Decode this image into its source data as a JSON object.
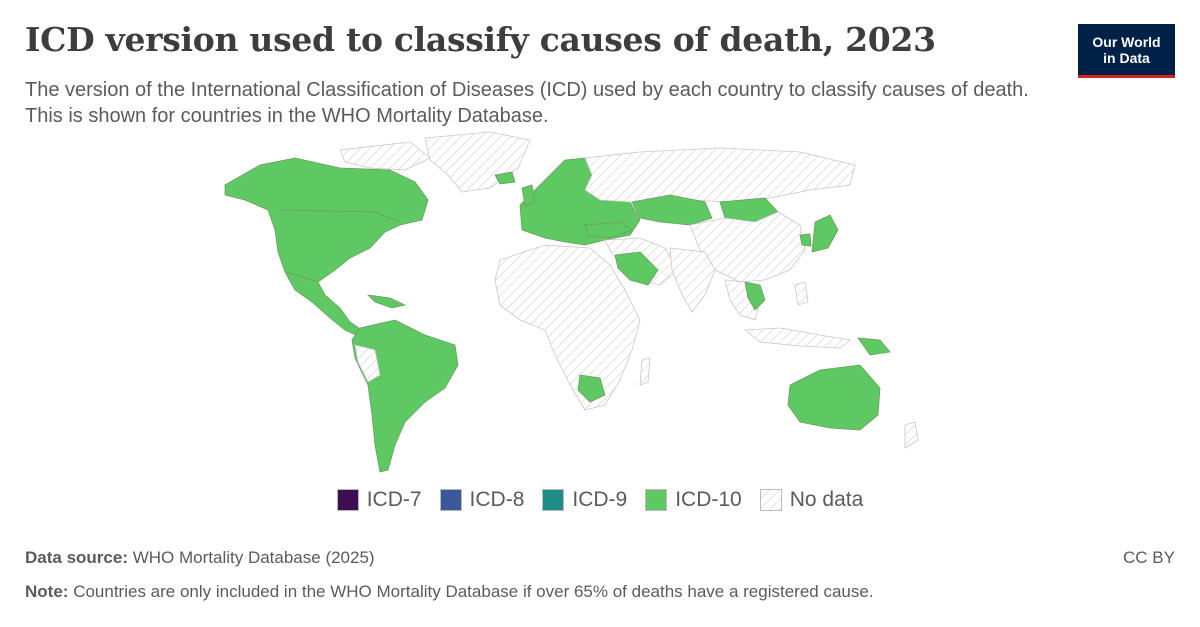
{
  "header": {
    "title": "ICD version used to classify causes of death, 2023",
    "subtitle": "The version of the International Classification of Diseases (ICD) used by each country to classify causes of death. This is shown for countries in the WHO Mortality Database."
  },
  "logo": {
    "line1": "Our World",
    "line2": "in Data"
  },
  "legend": [
    {
      "label": "ICD-7",
      "color": "#3f0d52"
    },
    {
      "label": "ICD-8",
      "color": "#3b5998"
    },
    {
      "label": "ICD-9",
      "color": "#1f8c8a"
    },
    {
      "label": "ICD-10",
      "color": "#5ec962"
    },
    {
      "label": "No data",
      "color": "hatched"
    }
  ],
  "footer": {
    "source_label": "Data source:",
    "source_text": "WHO Mortality Database (2025)",
    "note_label": "Note:",
    "note_text": "Countries are only included in the WHO Mortality Database if over 65% of deaths have a registered cause.",
    "license": "CC BY"
  },
  "colors": {
    "icd10": "#5ec962",
    "no_data_stroke": "#c8c8c8",
    "border": "#6e9c62"
  }
}
